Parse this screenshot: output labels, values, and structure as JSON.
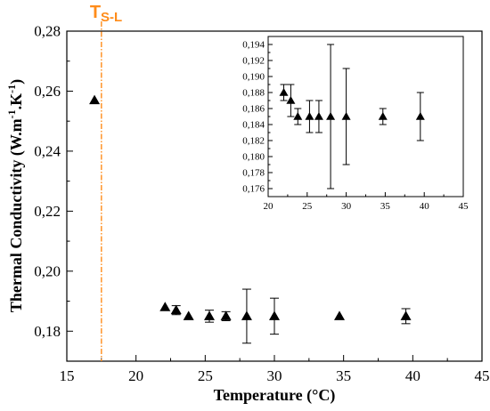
{
  "chart_data": {
    "main": {
      "type": "scatter",
      "xlabel": "Temperature (°C)",
      "ylabel_parts": {
        "base": "Thermal Conductivity (W.m",
        "exp1": "-1",
        "mid": ".K",
        "exp2": "-1",
        "end": ")"
      },
      "xlim": [
        15,
        45
      ],
      "ylim": [
        0.17,
        0.28
      ],
      "xticks": [
        "15",
        "20",
        "25",
        "30",
        "35",
        "40",
        "45"
      ],
      "yticks": [
        "0,18",
        "0,20",
        "0,22",
        "0,24",
        "0,26",
        "0,28"
      ],
      "points": [
        {
          "x": 17.0,
          "y": 0.257,
          "err": 0
        },
        {
          "x": 22.1,
          "y": 0.188,
          "err": 0
        },
        {
          "x": 22.9,
          "y": 0.187,
          "err": 0.0015
        },
        {
          "x": 23.8,
          "y": 0.185,
          "err": 0
        },
        {
          "x": 25.3,
          "y": 0.185,
          "err": 0.002
        },
        {
          "x": 26.5,
          "y": 0.185,
          "err": 0.0015
        },
        {
          "x": 28.0,
          "y": 0.185,
          "err": 0.009
        },
        {
          "x": 30.0,
          "y": 0.185,
          "err": 0.006
        },
        {
          "x": 34.7,
          "y": 0.185,
          "err": 0
        },
        {
          "x": 39.5,
          "y": 0.185,
          "err": 0.0025
        }
      ],
      "vline": {
        "x": 17.5,
        "label_main": "T",
        "label_sub": "S-L",
        "color": "#ff8c1a"
      }
    },
    "inset": {
      "type": "scatter",
      "xlim": [
        20,
        45
      ],
      "ylim": [
        0.175,
        0.195
      ],
      "xticks": [
        "20",
        "25",
        "30",
        "35",
        "40",
        "45"
      ],
      "yticks": [
        "0,176",
        "0,178",
        "0,180",
        "0,182",
        "0,184",
        "0,186",
        "0,188",
        "0,190",
        "0,192",
        "0,194"
      ],
      "points": [
        {
          "x": 22.0,
          "y": 0.188,
          "err": 0.001
        },
        {
          "x": 22.9,
          "y": 0.187,
          "err": 0.002
        },
        {
          "x": 23.8,
          "y": 0.185,
          "err": 0.001
        },
        {
          "x": 25.3,
          "y": 0.185,
          "err": 0.002
        },
        {
          "x": 26.5,
          "y": 0.185,
          "err": 0.002
        },
        {
          "x": 28.0,
          "y": 0.185,
          "err": 0.009
        },
        {
          "x": 30.0,
          "y": 0.185,
          "err": 0.006
        },
        {
          "x": 34.7,
          "y": 0.185,
          "err": 0.001
        },
        {
          "x": 39.5,
          "y": 0.185,
          "err": 0.003
        }
      ]
    }
  }
}
